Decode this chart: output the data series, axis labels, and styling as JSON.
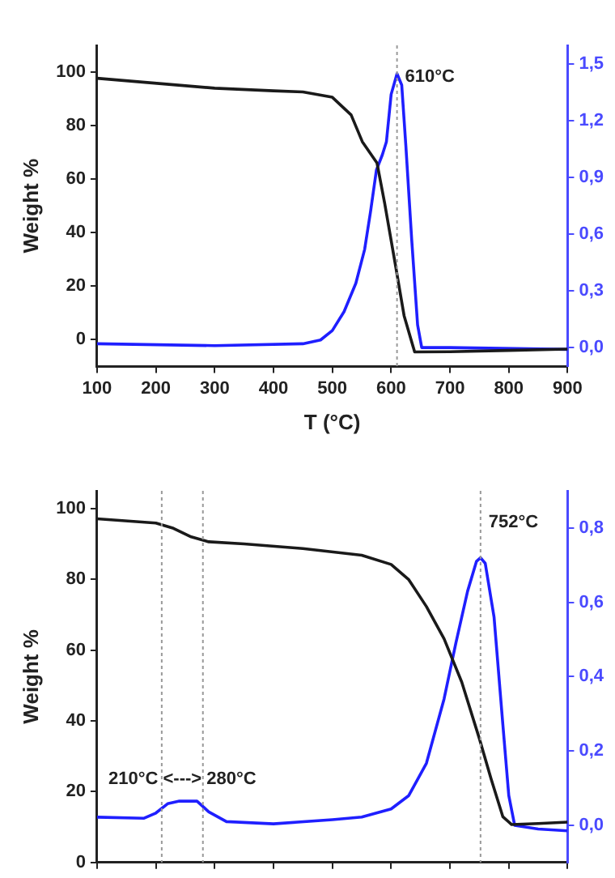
{
  "chart_data": [
    {
      "type": "line",
      "xlabel": "T (°C)",
      "ylabel": "Weight %",
      "xlim": [
        100,
        900
      ],
      "xticks": [
        100,
        200,
        300,
        400,
        500,
        600,
        700,
        800,
        900
      ],
      "ylim": [
        -10,
        110
      ],
      "yticks": [
        0,
        20,
        40,
        60,
        80,
        100
      ],
      "y2lim": [
        -0.1,
        1.6
      ],
      "y2ticks": [
        {
          "value": 0,
          "label": "0,0"
        },
        {
          "value": 0.3,
          "label": "0,3"
        },
        {
          "value": 0.6,
          "label": "0,6"
        },
        {
          "value": 0.9,
          "label": "0,9"
        },
        {
          "value": 1.2,
          "label": "1,2"
        },
        {
          "value": 1.5,
          "label": "1,5"
        }
      ],
      "grid": false,
      "legend": false,
      "marker": "none",
      "line_style": "solid",
      "series": [
        {
          "color": "#1a1a1a",
          "axis": "y",
          "x": [
            100,
            300,
            400,
            450,
            500,
            532,
            551,
            576,
            589,
            608,
            622,
            640,
            700,
            800,
            900
          ],
          "values": [
            97.7,
            94,
            93,
            92.6,
            90.6,
            84,
            74,
            66,
            51,
            27,
            9,
            -4.6,
            -4.5,
            -4,
            -3.5
          ]
        },
        {
          "color": "#1f1fff",
          "axis": "y2",
          "x": [
            100,
            300,
            450,
            480,
            500,
            520,
            540,
            555,
            565,
            575,
            585,
            592,
            600,
            610,
            618,
            625,
            635,
            645,
            652,
            700,
            900
          ],
          "values": [
            0.02,
            0.01,
            0.02,
            0.04,
            0.09,
            0.19,
            0.34,
            0.52,
            0.72,
            0.94,
            1.02,
            1.09,
            1.34,
            1.45,
            1.39,
            1.07,
            0.57,
            0.12,
            0,
            0,
            -0.01
          ]
        }
      ],
      "ref_lines": [
        {
          "axis": "x",
          "value": 610,
          "label": "610°C",
          "color": "#999999",
          "line_style": "dotted"
        }
      ]
    },
    {
      "type": "line",
      "ylabel": "Weight %",
      "xlim": [
        100,
        900
      ],
      "xticks": [
        100,
        200,
        300,
        400,
        500,
        600,
        700,
        800,
        900
      ],
      "tick_labels": "y",
      "ylim": [
        0,
        105
      ],
      "yticks": [
        0,
        20,
        40,
        60,
        80,
        100
      ],
      "y2lim": [
        -0.1,
        0.9
      ],
      "y2ticks": [
        {
          "value": 0,
          "label": "0,0"
        },
        {
          "value": 0.2,
          "label": "0,2"
        },
        {
          "value": 0.4,
          "label": "0,4"
        },
        {
          "value": 0.6,
          "label": "0,6"
        },
        {
          "value": 0.8,
          "label": "0,8"
        }
      ],
      "grid": false,
      "legend": false,
      "marker": "none",
      "line_style": "solid",
      "series": [
        {
          "color": "#1a1a1a",
          "axis": "y",
          "x": [
            100,
            200,
            230,
            260,
            290,
            350,
            450,
            550,
            600,
            630,
            660,
            690,
            720,
            750,
            770,
            790,
            805,
            850,
            900
          ],
          "values": [
            97.1,
            95.9,
            94.4,
            92,
            90.6,
            90,
            88.7,
            86.8,
            84.2,
            79.9,
            72.3,
            63.2,
            51,
            35,
            23.6,
            12.9,
            10.7,
            11,
            11.4
          ]
        },
        {
          "color": "#1f1fff",
          "axis": "y2",
          "x": [
            100,
            180,
            200,
            220,
            240,
            270,
            290,
            320,
            400,
            500,
            550,
            600,
            630,
            660,
            690,
            710,
            730,
            745,
            752,
            760,
            775,
            790,
            800,
            810,
            850,
            900
          ],
          "values": [
            0.022,
            0.019,
            0.033,
            0.058,
            0.065,
            0.065,
            0.036,
            0.01,
            0.004,
            0.015,
            0.022,
            0.044,
            0.08,
            0.167,
            0.34,
            0.49,
            0.63,
            0.71,
            0.72,
            0.705,
            0.56,
            0.27,
            0.08,
            0,
            -0.01,
            -0.015
          ]
        }
      ],
      "ref_lines": [
        {
          "axis": "x",
          "value": 752,
          "label": "752°C",
          "color": "#999999",
          "line_style": "dotted"
        },
        {
          "axis": "x",
          "value": 210,
          "color": "#999999",
          "line_style": "dotted"
        },
        {
          "axis": "x",
          "value": 280,
          "color": "#999999",
          "line_style": "dotted"
        }
      ],
      "annotations": [
        {
          "text": "210°C <---> 280°C",
          "x": 245,
          "y": 20
        }
      ]
    }
  ]
}
